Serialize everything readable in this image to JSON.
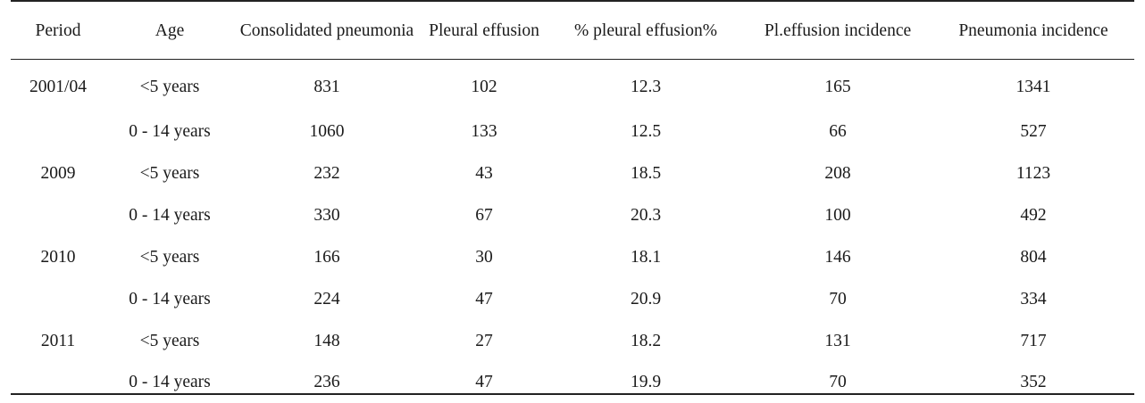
{
  "table": {
    "headers": [
      "Period",
      "Age",
      "Consolidated pneumonia",
      "Pleural effusion",
      "% pleural effusion%",
      "Pl.effusion incidence",
      "Pneumonia incidence"
    ],
    "rows": [
      [
        "2001/04",
        "<5 years",
        "831",
        "102",
        "12.3",
        "165",
        "1341"
      ],
      [
        "",
        "0 - 14 years",
        "1060",
        "133",
        "12.5",
        "66",
        "527"
      ],
      [
        "2009",
        "<5 years",
        "232",
        "43",
        "18.5",
        "208",
        "1123"
      ],
      [
        "",
        "0 - 14 years",
        "330",
        "67",
        "20.3",
        "100",
        "492"
      ],
      [
        "2010",
        "<5 years",
        "166",
        "30",
        "18.1",
        "146",
        "804"
      ],
      [
        "",
        "0 - 14 years",
        "224",
        "47",
        "20.9",
        "70",
        "334"
      ],
      [
        "2011",
        "<5 years",
        "148",
        "27",
        "18.2",
        "131",
        "717"
      ],
      [
        "",
        "0 - 14 years",
        "236",
        "47",
        "19.9",
        "70",
        "352"
      ]
    ]
  }
}
